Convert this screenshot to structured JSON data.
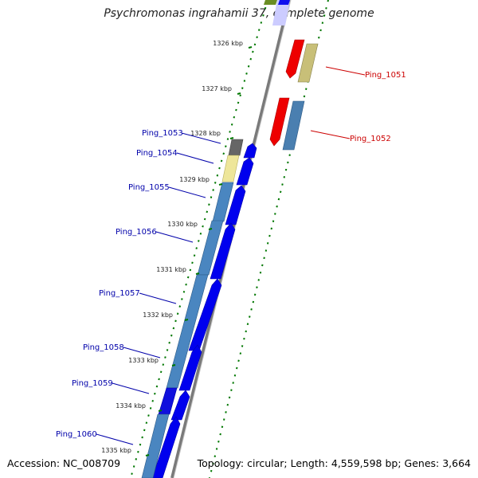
{
  "title": "Psychromonas ingrahamii 37, complete genome",
  "accession": "Accession: NC_008709",
  "topology": "Topology: circular; Length: 4,559,598 bp; Genes: 3,664",
  "colors": {
    "forward_label": "#0000aa",
    "reverse_label": "#cc0000",
    "tick": "#007700",
    "backbone": "#888888"
  },
  "kbp_ticks": [
    "1326 kbp",
    "1327 kbp",
    "1328 kbp",
    "1329 kbp",
    "1330 kbp",
    "1331 kbp",
    "1332 kbp",
    "1333 kbp",
    "1334 kbp",
    "1335 kbp"
  ],
  "forward_genes": [
    "Ping_1053",
    "Ping_1054",
    "Ping_1055",
    "Ping_1056",
    "Ping_1057",
    "Ping_1058",
    "Ping_1059",
    "Ping_1060"
  ],
  "reverse_genes": [
    "Ping_1051",
    "Ping_1052"
  ]
}
